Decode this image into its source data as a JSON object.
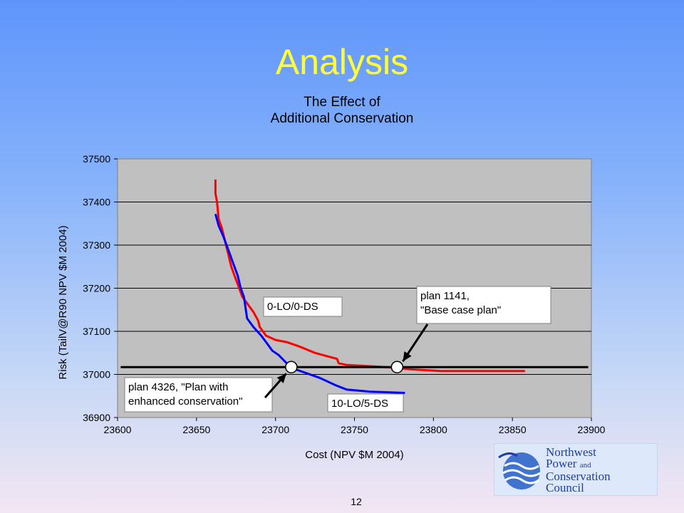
{
  "slide": {
    "title": "Analysis",
    "page_number": "12"
  },
  "logo": {
    "line1": "Northwest",
    "line2": "Power",
    "line2_and": "and",
    "line3": "Conservation",
    "line4": "Council"
  },
  "colors": {
    "title": "#ffff33",
    "plot_background": "#c0c0c0",
    "red_series": "#ff0000",
    "blue_series": "#0000ff"
  },
  "chart_data": {
    "type": "line",
    "title": "The Effect of\nAdditional Conservation",
    "title_lines": [
      "The Effect of",
      "Additional Conservation"
    ],
    "xlabel": "Cost (NPV $M 2004)",
    "ylabel": "Risk (TailV@R90 NPV $M 2004)",
    "xlim": [
      23600,
      23900
    ],
    "ylim": [
      36900,
      37500
    ],
    "xticks": [
      "23600",
      "23650",
      "23700",
      "23750",
      "23800",
      "23850",
      "23900"
    ],
    "yticks": [
      "36900",
      "37000",
      "37100",
      "37200",
      "37300",
      "37400",
      "37500"
    ],
    "grid": true,
    "series": [
      {
        "name": "0-LO/0-DS",
        "color": "#ff0000",
        "points": [
          [
            23662,
            37452
          ],
          [
            23662,
            37420
          ],
          [
            23663,
            37400
          ],
          [
            23664,
            37360
          ],
          [
            23666,
            37340
          ],
          [
            23668,
            37310
          ],
          [
            23670,
            37280
          ],
          [
            23672,
            37250
          ],
          [
            23674,
            37230
          ],
          [
            23677,
            37200
          ],
          [
            23679,
            37180
          ],
          [
            23681,
            37170
          ],
          [
            23683,
            37160
          ],
          [
            23686,
            37145
          ],
          [
            23689,
            37125
          ],
          [
            23690,
            37110
          ],
          [
            23694,
            37090
          ],
          [
            23700,
            37080
          ],
          [
            23707,
            37075
          ],
          [
            23715,
            37065
          ],
          [
            23725,
            37050
          ],
          [
            23735,
            37040
          ],
          [
            23739,
            37036
          ],
          [
            23740,
            37026
          ],
          [
            23745,
            37022
          ],
          [
            23755,
            37020
          ],
          [
            23765,
            37018
          ],
          [
            23777,
            37015
          ],
          [
            23785,
            37012
          ],
          [
            23795,
            37010
          ],
          [
            23805,
            37008
          ],
          [
            23830,
            37008
          ],
          [
            23858,
            37008
          ]
        ]
      },
      {
        "name": "10-LO/5-DS",
        "color": "#0000ff",
        "points": [
          [
            23662,
            37372
          ],
          [
            23664,
            37345
          ],
          [
            23667,
            37320
          ],
          [
            23670,
            37290
          ],
          [
            23673,
            37260
          ],
          [
            23676,
            37230
          ],
          [
            23678,
            37200
          ],
          [
            23680,
            37180
          ],
          [
            23681,
            37155
          ],
          [
            23682,
            37130
          ],
          [
            23686,
            37110
          ],
          [
            23691,
            37090
          ],
          [
            23695,
            37070
          ],
          [
            23698,
            37055
          ],
          [
            23702,
            37045
          ],
          [
            23706,
            37030
          ],
          [
            23710,
            37015
          ],
          [
            23718,
            37005
          ],
          [
            23728,
            36992
          ],
          [
            23738,
            36975
          ],
          [
            23745,
            36965
          ],
          [
            23760,
            36960
          ],
          [
            23775,
            36958
          ],
          [
            23782,
            36957
          ]
        ]
      }
    ],
    "reference_line": {
      "y": 37017,
      "x_range": [
        23602,
        23898
      ],
      "color": "#000000"
    },
    "markers": [
      {
        "name": "plan 4326",
        "x": 23710,
        "y": 37017
      },
      {
        "name": "plan 1141",
        "x": 23777,
        "y": 37017
      }
    ],
    "annotations": [
      {
        "id": "series-label-red",
        "lines": [
          "0-LO/0-DS"
        ]
      },
      {
        "id": "series-label-blue",
        "lines": [
          "10-LO/5-DS"
        ]
      },
      {
        "id": "callout-base",
        "lines": [
          "plan 1141,",
          "\"Base case plan\""
        ]
      },
      {
        "id": "callout-enhanced",
        "lines": [
          "plan 4326, \"Plan with",
          "enhanced conservation\""
        ]
      }
    ]
  }
}
